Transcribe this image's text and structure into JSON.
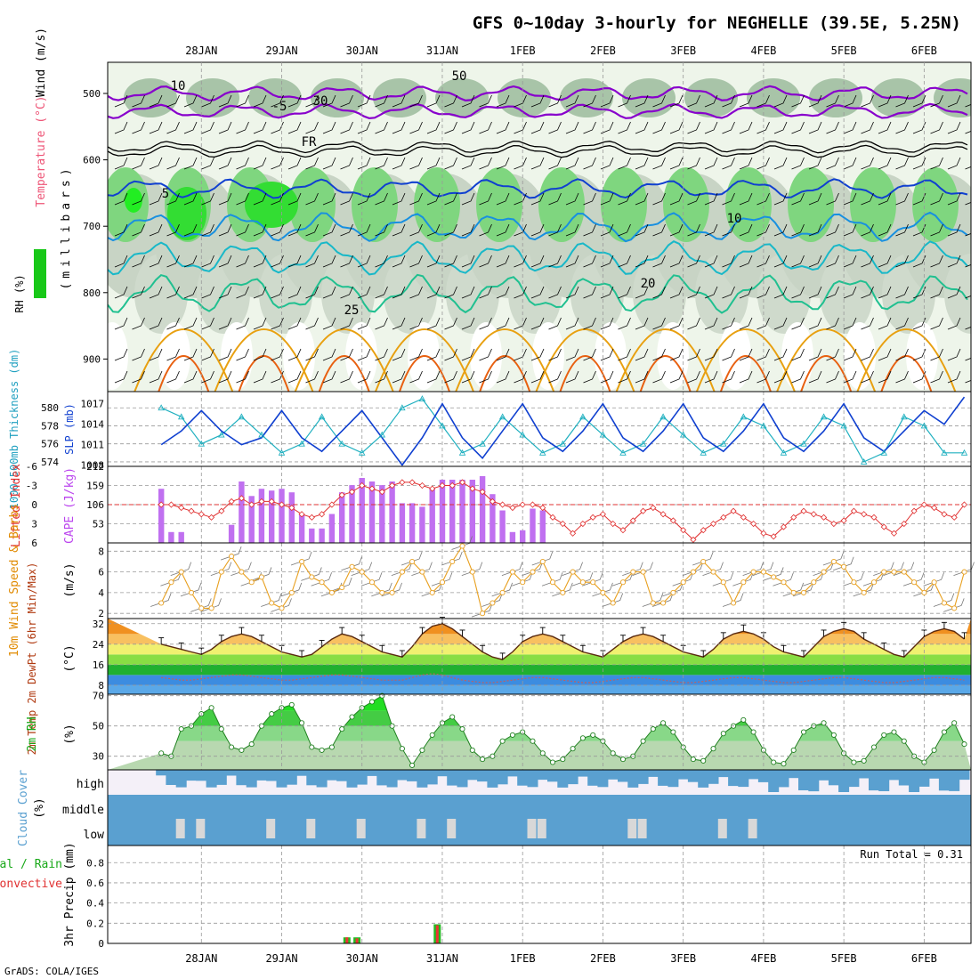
{
  "title": "GFS 0~10day 3-hourly for NEGHELLE (39.5E, 5.25N)",
  "footer": "GrADS: COLA/IGES",
  "dates": [
    "28JAN",
    "29JAN",
    "30JAN",
    "31JAN",
    "1FEB",
    "2FEB",
    "3FEB",
    "4FEB",
    "5FEB",
    "6FEB"
  ],
  "colors": {
    "purple": "#8800cc",
    "blue": "#1040d0",
    "cyan": "#20b0c0",
    "green": "#18a818",
    "red": "#e03030",
    "orange": "#e08a00",
    "sky": "#5aa0d0"
  },
  "chart_data": [
    {
      "panel": "upper-air",
      "type": "heatmap",
      "ylabel_parts": [
        "Wind (m/s)",
        "Temperature (°C)",
        "RH (%)"
      ],
      "ylabel_units": "(millibars)",
      "yticks": [
        500,
        600,
        700,
        800,
        900
      ],
      "ylim": [
        950,
        450
      ],
      "contour_labels": [
        "10",
        "-5",
        "50",
        "30",
        "FR",
        "5",
        "10",
        "20",
        "25"
      ]
    },
    {
      "panel": "thickness-slp",
      "type": "line",
      "ylabel_left": "1000-500mb Thickness (dm)",
      "ylabel_right": "SLP (mb)",
      "yticks_left": [
        574,
        576,
        578,
        580
      ],
      "yticks_right": [
        1008,
        1011,
        1014,
        1017
      ],
      "ylim_left": [
        573.5,
        581.8
      ],
      "ylim_right": [
        1007.8,
        1018.8
      ],
      "x": [
        0,
        6,
        12,
        18,
        24,
        30,
        36,
        42,
        48,
        54,
        60,
        66,
        72,
        78,
        84,
        90,
        96,
        102,
        108,
        114,
        120,
        126,
        132,
        138,
        144,
        150,
        156,
        162,
        168,
        174,
        180,
        186,
        192,
        198,
        204,
        210,
        216,
        222,
        228,
        234,
        240
      ],
      "series": [
        {
          "name": "SLP",
          "axis": "right",
          "values": [
            1011,
            1013,
            1016,
            1013,
            1011,
            1012,
            1016,
            1012,
            1010,
            1013,
            1016,
            1012,
            1008,
            1012,
            1017,
            1012,
            1009,
            1013,
            1017,
            1012,
            1010,
            1013,
            1017,
            1012,
            1010,
            1013,
            1017,
            1012,
            1010,
            1013,
            1017,
            1012,
            1010,
            1013,
            1017,
            1012,
            1010,
            1013,
            1016,
            1014,
            1018
          ]
        },
        {
          "name": "Thickness",
          "axis": "left",
          "values": [
            580,
            579,
            576,
            577,
            579,
            577,
            575,
            576,
            579,
            576,
            575,
            577,
            580,
            581,
            578,
            575,
            576,
            579,
            577,
            575,
            576,
            579,
            577,
            575,
            576,
            579,
            577,
            575,
            576,
            579,
            578,
            575,
            576,
            579,
            578,
            574,
            575,
            579,
            578,
            575,
            575
          ]
        }
      ]
    },
    {
      "panel": "stability",
      "type": "bar",
      "ylabel_left": "Lifted Index",
      "ylabel_right": "CAPE (J/kg)",
      "yticks_left": [
        -6,
        -3,
        0,
        3,
        6
      ],
      "yticks_right": [
        53,
        106,
        159,
        212
      ],
      "ylim_left": [
        6,
        -6
      ],
      "ylim_right": [
        0,
        212
      ],
      "x": [
        0,
        3,
        6,
        9,
        12,
        15,
        18,
        21,
        24,
        27,
        30,
        33,
        36,
        39,
        42,
        45,
        48,
        51,
        54,
        57,
        60,
        63,
        66,
        69,
        72,
        75,
        78,
        81,
        84,
        87,
        90,
        93,
        96,
        99,
        102,
        105,
        108,
        111,
        114,
        117,
        120,
        123,
        126,
        129,
        132,
        135,
        138,
        141,
        144,
        147,
        150,
        153,
        156,
        159,
        162,
        165,
        168,
        171,
        174,
        177,
        180,
        183,
        186,
        189,
        192,
        195,
        198,
        201,
        204,
        207,
        210,
        213,
        216,
        219,
        222,
        225,
        228,
        231,
        234,
        237,
        240
      ],
      "series": [
        {
          "name": "CAPE",
          "values": [
            150,
            30,
            30,
            0,
            0,
            0,
            0,
            50,
            170,
            130,
            150,
            145,
            150,
            140,
            80,
            40,
            40,
            80,
            140,
            160,
            180,
            170,
            160,
            170,
            110,
            110,
            100,
            150,
            175,
            175,
            175,
            175,
            185,
            135,
            90,
            30,
            35,
            95,
            90,
            0,
            0,
            0,
            0,
            0,
            0,
            0,
            0,
            0,
            0,
            0,
            0,
            0,
            0,
            0,
            0,
            0,
            0,
            0,
            0,
            0,
            0,
            0,
            0,
            0,
            0,
            0,
            0,
            0,
            0,
            0,
            0,
            0,
            0,
            0,
            0,
            0,
            0,
            0,
            0,
            0,
            0
          ]
        },
        {
          "name": "Lifted Index",
          "values": [
            0,
            0,
            0.5,
            1,
            1.5,
            2,
            1,
            -0.5,
            -1,
            0,
            -0.5,
            -0.5,
            0,
            0.5,
            1.5,
            2,
            1.5,
            0,
            -1.5,
            -2,
            -3,
            -2.5,
            -2,
            -3,
            -3.5,
            -3.5,
            -3,
            -2.5,
            -3,
            -3,
            -3.5,
            -2.5,
            -2,
            -0.5,
            0,
            0.5,
            0,
            0,
            0.5,
            2,
            3,
            4.5,
            3,
            2,
            1.5,
            3,
            4,
            2.5,
            1,
            0.5,
            1.5,
            2.5,
            4,
            5.5,
            4,
            3,
            2,
            1,
            2,
            3,
            4.5,
            5,
            3.5,
            2,
            1,
            1.5,
            2,
            3,
            2.5,
            1,
            1.5,
            2,
            3.5,
            4.5,
            3,
            1,
            0,
            0.5,
            1.5,
            2,
            0
          ]
        }
      ]
    },
    {
      "panel": "wind-10m",
      "type": "line",
      "ylabel": "10m Wind Speed & Barbs",
      "yunits": "(m/s)",
      "yticks": [
        2,
        4,
        6,
        8
      ],
      "ylim": [
        1.5,
        8.8
      ],
      "x": [
        0,
        3,
        6,
        9,
        12,
        15,
        18,
        21,
        24,
        27,
        30,
        33,
        36,
        39,
        42,
        45,
        48,
        51,
        54,
        57,
        60,
        63,
        66,
        69,
        72,
        75,
        78,
        81,
        84,
        87,
        90,
        93,
        96,
        99,
        102,
        105,
        108,
        111,
        114,
        117,
        120,
        123,
        126,
        129,
        132,
        135,
        138,
        141,
        144,
        147,
        150,
        153,
        156,
        159,
        162,
        165,
        168,
        171,
        174,
        177,
        180,
        183,
        186,
        189,
        192,
        195,
        198,
        201,
        204,
        207,
        210,
        213,
        216,
        219,
        222,
        225,
        228,
        231,
        234,
        237,
        240
      ],
      "series": [
        {
          "name": "Speed",
          "values": [
            3,
            5,
            6,
            4,
            2.5,
            2.5,
            6,
            7.5,
            6,
            5,
            5.5,
            3,
            2.5,
            4,
            7,
            5.5,
            5,
            4,
            4.5,
            6.5,
            6,
            5,
            4,
            4,
            6,
            7,
            6,
            4,
            5,
            7,
            8.5,
            6,
            2,
            3,
            4,
            6,
            5,
            6,
            7,
            5,
            4,
            6,
            5,
            5,
            4,
            3,
            5,
            6,
            6,
            3,
            3,
            4,
            5,
            6,
            7,
            6,
            5,
            3,
            5,
            6,
            6,
            5.5,
            5,
            4,
            4,
            5,
            6,
            7,
            6.5,
            5,
            4,
            5,
            6,
            6,
            6,
            5,
            4,
            5,
            3,
            2.5,
            6
          ]
        }
      ]
    },
    {
      "panel": "temperature-2m",
      "type": "area",
      "ylabel": "2m Temp 2m DewPt (6hr Min/Max)",
      "yunits": "(°C)",
      "yticks": [
        8,
        16,
        24,
        32
      ],
      "ylim": [
        4.5,
        34
      ],
      "x": [
        0,
        3,
        6,
        9,
        12,
        15,
        18,
        21,
        24,
        27,
        30,
        33,
        36,
        39,
        42,
        45,
        48,
        51,
        54,
        57,
        60,
        63,
        66,
        69,
        72,
        75,
        78,
        81,
        84,
        87,
        90,
        93,
        96,
        99,
        102,
        105,
        108,
        111,
        114,
        117,
        120,
        123,
        126,
        129,
        132,
        135,
        138,
        141,
        144,
        147,
        150,
        153,
        156,
        159,
        162,
        165,
        168,
        171,
        174,
        177,
        180,
        183,
        186,
        189,
        192,
        195,
        198,
        201,
        204,
        207,
        210,
        213,
        216,
        219,
        222,
        225,
        228,
        231,
        234,
        237,
        240
      ],
      "series": [
        {
          "name": "Temp",
          "values": [
            24,
            23,
            22,
            21,
            20,
            22,
            25,
            27,
            28,
            27,
            25,
            23,
            21,
            20,
            19,
            20,
            23,
            26,
            28,
            27,
            25,
            23,
            21,
            20,
            19,
            23,
            28,
            31,
            32,
            30,
            27,
            24,
            21,
            19,
            18,
            21,
            25,
            27,
            28,
            27,
            25,
            23,
            21,
            20,
            19,
            22,
            25,
            27,
            28,
            27,
            25,
            23,
            21,
            20,
            19,
            22,
            26,
            28,
            29,
            28,
            26,
            23,
            21,
            20,
            19,
            23,
            27,
            29,
            30,
            29,
            26,
            24,
            22,
            20,
            19,
            23,
            27,
            29,
            30,
            29,
            26
          ]
        },
        {
          "name": "DewPt",
          "values": [
            11,
            10.5,
            10,
            10,
            10.5,
            11,
            11.5,
            12,
            12,
            11.5,
            11,
            10.5,
            10,
            10,
            10.5,
            11,
            11.5,
            12,
            12,
            11.5,
            11,
            10.5,
            10,
            10,
            10,
            11,
            12,
            12.5,
            12,
            11,
            10,
            9.5,
            9,
            9,
            9.5,
            10,
            10.5,
            11,
            11,
            10.5,
            10,
            9.5,
            9,
            9,
            9.5,
            10,
            10.5,
            11,
            11,
            10.5,
            10,
            9.5,
            9,
            9,
            9.5,
            10,
            10.5,
            11,
            11,
            10.5,
            10,
            9.5,
            9,
            9,
            9.5,
            10,
            10.5,
            11,
            11,
            10.5,
            10,
            9.5,
            9,
            9,
            9.5,
            10,
            10.5,
            11,
            11,
            10.5,
            10
          ]
        }
      ]
    },
    {
      "panel": "rh-2m",
      "type": "area",
      "ylabel": "2m RH",
      "yunits": "(%)",
      "yticks": [
        30,
        50,
        70
      ],
      "ylim": [
        21,
        71
      ],
      "x": [
        0,
        3,
        6,
        9,
        12,
        15,
        18,
        21,
        24,
        27,
        30,
        33,
        36,
        39,
        42,
        45,
        48,
        51,
        54,
        57,
        60,
        63,
        66,
        69,
        72,
        75,
        78,
        81,
        84,
        87,
        90,
        93,
        96,
        99,
        102,
        105,
        108,
        111,
        114,
        117,
        120,
        123,
        126,
        129,
        132,
        135,
        138,
        141,
        144,
        147,
        150,
        153,
        156,
        159,
        162,
        165,
        168,
        171,
        174,
        177,
        180,
        183,
        186,
        189,
        192,
        195,
        198,
        201,
        204,
        207,
        210,
        213,
        216,
        219,
        222,
        225,
        228,
        231,
        234,
        237,
        240
      ],
      "series": [
        {
          "name": "RH",
          "values": [
            32,
            30,
            48,
            50,
            58,
            62,
            48,
            36,
            34,
            38,
            50,
            58,
            62,
            64,
            52,
            36,
            34,
            36,
            48,
            56,
            62,
            66,
            70,
            50,
            35,
            24,
            34,
            44,
            52,
            56,
            48,
            34,
            28,
            30,
            40,
            44,
            46,
            40,
            32,
            26,
            28,
            35,
            42,
            44,
            40,
            32,
            28,
            30,
            40,
            48,
            52,
            46,
            36,
            28,
            27,
            35,
            45,
            50,
            54,
            46,
            34,
            26,
            25,
            34,
            46,
            50,
            52,
            44,
            32,
            26,
            27,
            36,
            44,
            46,
            40,
            30,
            26,
            34,
            46,
            52,
            38
          ]
        }
      ]
    },
    {
      "panel": "cloud-cover",
      "type": "heatmap",
      "ylabel": "Cloud Cover",
      "yunits": "(%)",
      "rows": [
        "high",
        "middle",
        "low"
      ]
    },
    {
      "panel": "precip",
      "type": "bar",
      "ylabel_left": "Total / Rain",
      "ylabel_left2": "Convective",
      "ylabel": "3hr Precip (mm)",
      "annotation": "Run Total = 0.31",
      "yticks": [
        0,
        0.2,
        0.4,
        0.6,
        0.8
      ],
      "ylim": [
        0,
        0.97
      ],
      "bars": [
        {
          "x": 55.5,
          "total": 0.06,
          "convective": 0.06
        },
        {
          "x": 58.5,
          "total": 0.06,
          "convective": 0.05
        },
        {
          "x": 82.5,
          "total": 0.19,
          "convective": 0.18
        }
      ]
    }
  ]
}
